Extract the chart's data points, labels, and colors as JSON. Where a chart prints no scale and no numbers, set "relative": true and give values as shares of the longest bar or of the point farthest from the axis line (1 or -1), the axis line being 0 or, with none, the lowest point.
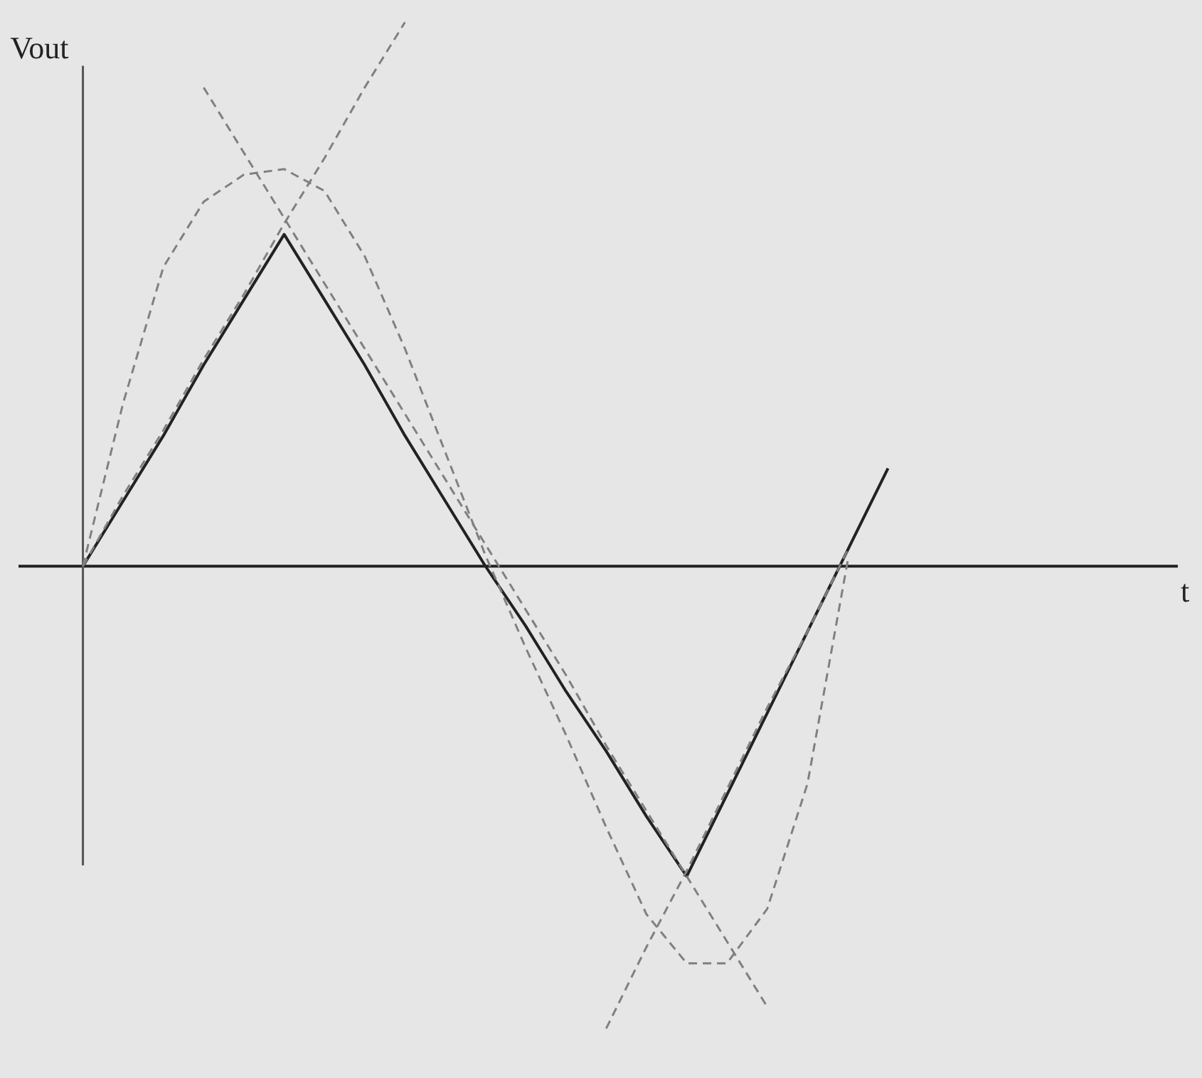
{
  "chart_data": {
    "type": "line",
    "relative": true,
    "annotations": [
      "t"
    ],
    "ylabel": "Vout",
    "grid": false,
    "categories": [
      null,
      null,
      null,
      null,
      null,
      null,
      null,
      null,
      null,
      null,
      null,
      null,
      null,
      null,
      null,
      null,
      null,
      null,
      null,
      null,
      null
    ],
    "series": [
      {
        "color": "#222222",
        "line_style": "solid",
        "values": [
          0,
          0.12,
          0.24,
          0.37,
          0.49,
          0.61,
          0.49,
          0.37,
          0.24,
          0.12,
          0,
          -0.11,
          -0.23,
          -0.34,
          -0.46,
          -0.57,
          -0.42,
          -0.27,
          -0.12,
          0.03,
          0.18
        ]
      },
      {
        "color": "#808080",
        "line_style": "dashed",
        "values": [
          0,
          0.3,
          0.55,
          0.67,
          0.72,
          0.73,
          0.69,
          0.57,
          0.4,
          0.21,
          0.02,
          -0.15,
          -0.31,
          -0.48,
          -0.64,
          -0.73,
          -0.73,
          -0.63,
          -0.4,
          0.01,
          null
        ]
      },
      {
        "color": "#808080",
        "line_style": "dashed",
        "values": [
          0,
          0.13,
          0.25,
          0.38,
          0.5,
          0.63,
          0.75,
          0.88,
          1.0,
          null,
          null,
          null,
          null,
          null,
          null,
          null,
          null,
          null,
          null,
          null,
          null
        ]
      },
      {
        "color": "#808080",
        "line_style": "dashed",
        "values": [
          null,
          null,
          null,
          0.88,
          0.76,
          0.64,
          0.52,
          0.4,
          0.28,
          0.16,
          0.04,
          -0.08,
          -0.2,
          -0.33,
          -0.45,
          -0.57,
          -0.69,
          -0.81,
          null,
          null,
          null
        ]
      },
      {
        "color": "#808080",
        "line_style": "dashed",
        "values": [
          null,
          null,
          null,
          null,
          null,
          null,
          null,
          null,
          null,
          null,
          null,
          null,
          null,
          -0.85,
          -0.7,
          -0.56,
          -0.41,
          -0.26,
          -0.12,
          0.03,
          null
        ]
      }
    ]
  }
}
